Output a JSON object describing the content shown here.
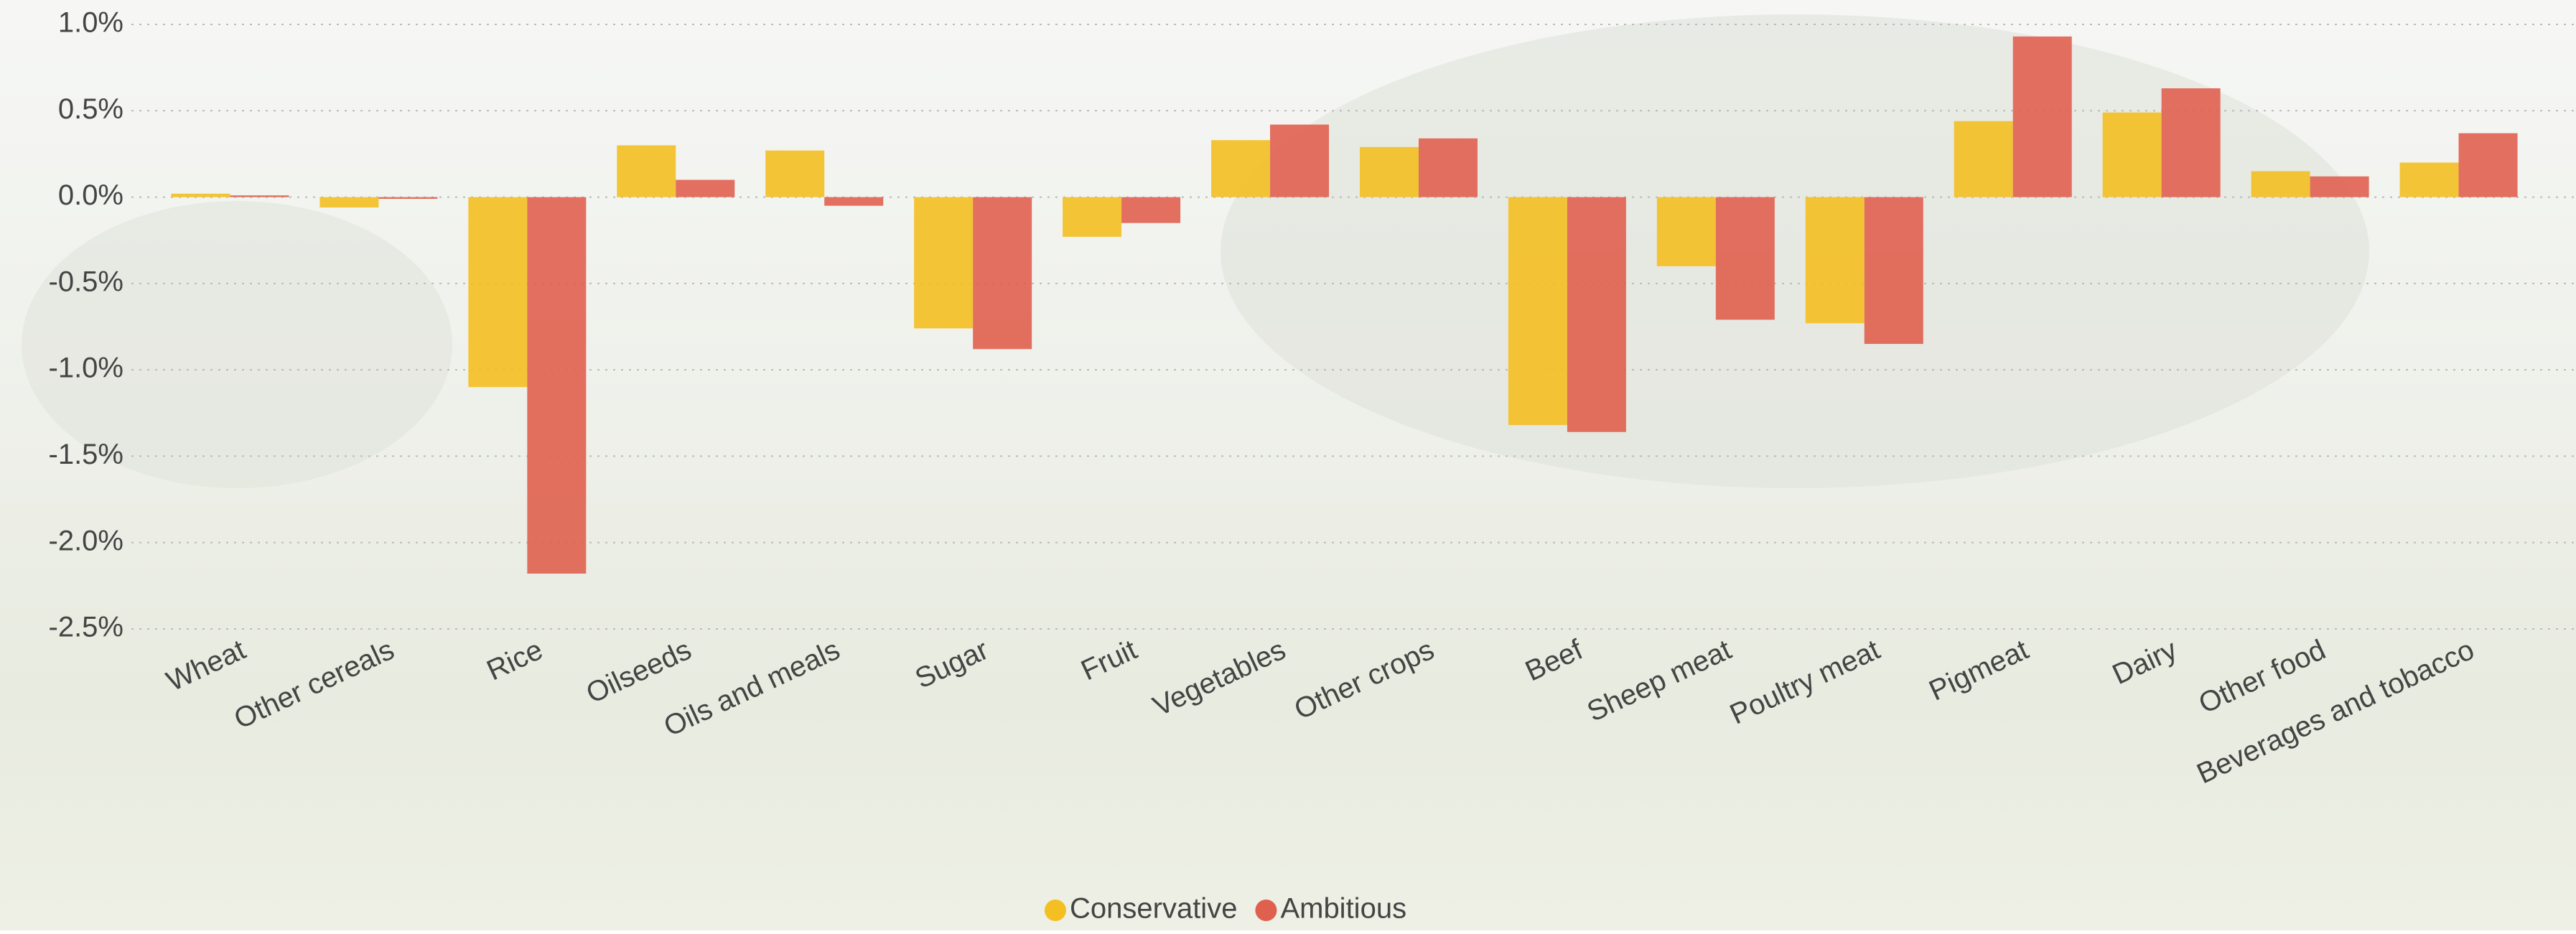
{
  "chart_data": {
    "type": "bar",
    "categories": [
      "Wheat",
      "Other cereals",
      "Rice",
      "Oilseeds",
      "Oils and meals",
      "Sugar",
      "Fruit",
      "Vegetables",
      "Other crops",
      "Beef",
      "Sheep meat",
      "Poultry meat",
      "Pigmeat",
      "Dairy",
      "Other food",
      "Beverages and tobacco"
    ],
    "series": [
      {
        "name": "Conservative",
        "color": "#f4bf22",
        "values": [
          0.02,
          -0.06,
          -1.1,
          0.3,
          0.27,
          -0.76,
          -0.23,
          0.33,
          0.29,
          -1.32,
          -0.4,
          -0.73,
          0.44,
          0.49,
          0.15,
          0.2
        ]
      },
      {
        "name": "Ambitious",
        "color": "#e0604f",
        "values": [
          0.01,
          -0.01,
          -2.18,
          0.1,
          -0.05,
          -0.88,
          -0.15,
          0.42,
          0.34,
          -1.36,
          -0.71,
          -0.85,
          0.93,
          0.63,
          0.12,
          0.37
        ]
      }
    ],
    "ylim": [
      -2.5,
      1.0
    ],
    "yticks": [
      {
        "value": -2.5,
        "label": "-2.5%"
      },
      {
        "value": -2.0,
        "label": "-2.0%"
      },
      {
        "value": -1.5,
        "label": "-1.5%"
      },
      {
        "value": -1.0,
        "label": "-1.0%"
      },
      {
        "value": -0.5,
        "label": "-0.5%"
      },
      {
        "value": 0.0,
        "label": "0.0%"
      },
      {
        "value": 0.5,
        "label": "0.5%"
      },
      {
        "value": 1.0,
        "label": "1.0%"
      }
    ],
    "grid": true,
    "legend": "bottom"
  }
}
